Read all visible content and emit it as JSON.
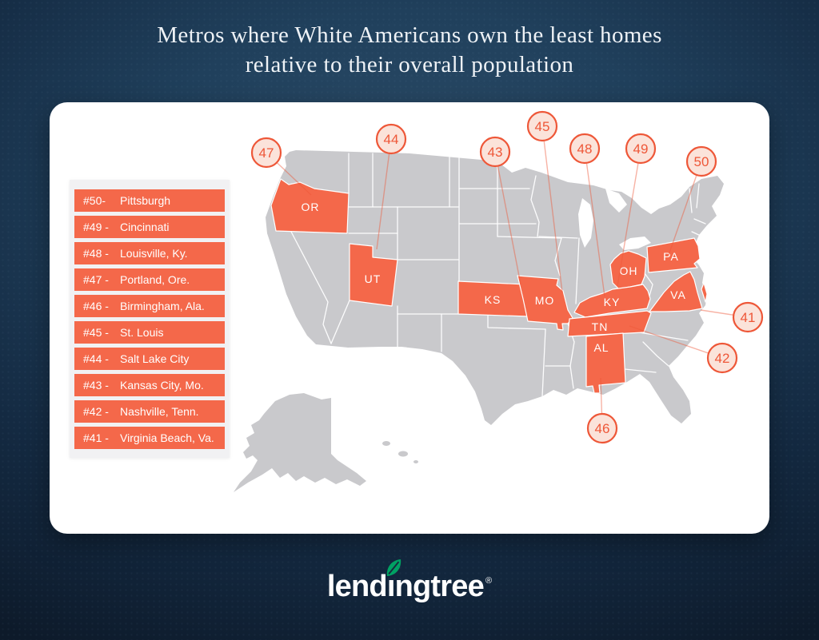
{
  "title": {
    "line1": "Metros where White Americans own the least homes",
    "line2": "relative to their overall population"
  },
  "legend": {
    "items": [
      {
        "rank": "#50-",
        "city": "Pittsburgh"
      },
      {
        "rank": "#49 -",
        "city": "Cincinnati"
      },
      {
        "rank": "#48 -",
        "city": "Louisville, Ky."
      },
      {
        "rank": "#47 -",
        "city": "Portland, Ore."
      },
      {
        "rank": "#46 -",
        "city": "Birmingham, Ala."
      },
      {
        "rank": "#45 -",
        "city": "St. Louis"
      },
      {
        "rank": "#44 -",
        "city": "Salt Lake City"
      },
      {
        "rank": "#43 -",
        "city": "Kansas City, Mo."
      },
      {
        "rank": "#42 -",
        "city": "Nashville, Tenn."
      },
      {
        "rank": "#41 -",
        "city": "Virginia Beach, Va."
      }
    ]
  },
  "chart_data": {
    "type": "table",
    "title": "Metros where White Americans own the least homes relative to their overall population",
    "columns": [
      "rank",
      "metro",
      "state_highlighted"
    ],
    "rows": [
      [
        50,
        "Pittsburgh",
        "PA"
      ],
      [
        49,
        "Cincinnati",
        "OH"
      ],
      [
        48,
        "Louisville, Ky.",
        "KY"
      ],
      [
        47,
        "Portland, Ore.",
        "OR"
      ],
      [
        46,
        "Birmingham, Ala.",
        "AL"
      ],
      [
        45,
        "St. Louis",
        "MO"
      ],
      [
        44,
        "Salt Lake City",
        "UT"
      ],
      [
        43,
        "Kansas City, Mo.",
        "MO"
      ],
      [
        42,
        "Nashville, Tenn.",
        "TN"
      ],
      [
        41,
        "Virginia Beach, Va.",
        "VA"
      ]
    ]
  },
  "map": {
    "states": [
      {
        "abbr": "OR"
      },
      {
        "abbr": "UT"
      },
      {
        "abbr": "KS"
      },
      {
        "abbr": "MO"
      },
      {
        "abbr": "OH"
      },
      {
        "abbr": "PA"
      },
      {
        "abbr": "KY"
      },
      {
        "abbr": "TN"
      },
      {
        "abbr": "VA"
      },
      {
        "abbr": "AL"
      }
    ],
    "callouts": [
      {
        "number": "47",
        "state": "OR"
      },
      {
        "number": "44",
        "state": "UT"
      },
      {
        "number": "43",
        "state": "MO"
      },
      {
        "number": "45",
        "state": "MO"
      },
      {
        "number": "48",
        "state": "KY"
      },
      {
        "number": "49",
        "state": "OH"
      },
      {
        "number": "50",
        "state": "PA"
      },
      {
        "number": "41",
        "state": "VA"
      },
      {
        "number": "42",
        "state": "TN"
      },
      {
        "number": "46",
        "state": "AL"
      }
    ]
  },
  "logo": {
    "text": "lendingtree",
    "registered": "®"
  },
  "colors": {
    "accent_orange": "#f4684a",
    "accent_orange_deep": "#ee5738",
    "callout_fill": "#fbe3da",
    "map_gray": "#c9c9cc",
    "leaf_green": "#00a263",
    "background_navy": "#17293e",
    "card_white": "#ffffff"
  }
}
